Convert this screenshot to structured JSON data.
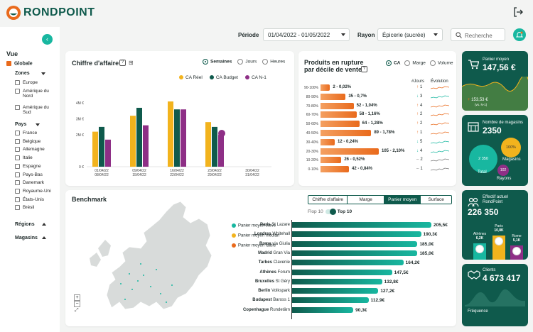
{
  "app": {
    "logo_text": "RONDPOINT",
    "colors": {
      "primary": "#0f5a4c",
      "accent": "#e96a1c",
      "teal": "#18b7a0",
      "yellow": "#f2b31d",
      "purple": "#8e2f86"
    }
  },
  "filters": {
    "period_label": "Période",
    "period_value": "01/04/2022 - 01/05/2022",
    "rayon_label": "Rayon",
    "rayon_value": "Épicerie (sucrée)",
    "search_placeholder": "Recherche"
  },
  "sidebar": {
    "vue": "Vue",
    "globale": "Globale",
    "zones": "Zones",
    "zone_items": [
      "Europe",
      "Amérique du Nord",
      "Amérique du Sud"
    ],
    "pays": "Pays",
    "pays_items": [
      "France",
      "Belgique",
      "Allemagne",
      "Italie",
      "Espagne",
      "Pays-Bas",
      "Danemark",
      "Royaume-Uni",
      "États-Unis",
      "Brésil"
    ],
    "regions": "Régions",
    "magasins": "Magasins"
  },
  "ca": {
    "title": "Chiffre d'affaire",
    "help": "?",
    "radios": [
      "Semaines",
      "Jours",
      "Heures"
    ],
    "legend": [
      "CA Réel",
      "CA Budget",
      "CA N-1"
    ],
    "yticks": [
      "4M €",
      "3M €",
      "2M €",
      "0 €"
    ],
    "xlabels": [
      [
        "01/04/22",
        "08/04/22"
      ],
      [
        "09/04/22",
        "15/04/22"
      ],
      [
        "16/04/22",
        "22/04/22"
      ],
      [
        "23/04/22",
        "29/04/22"
      ],
      [
        "30/04/22",
        "31/04/22"
      ]
    ]
  },
  "chart_data": {
    "type": "bar",
    "categories": [
      "01/04/22 08/04/22",
      "09/04/22 15/04/22",
      "16/04/22 22/04/22",
      "23/04/22 29/04/22",
      "30/04/22 31/04/22"
    ],
    "ylim": [
      0,
      4.5
    ],
    "series": [
      {
        "name": "CA Réel",
        "color": "#f2b31d",
        "values": [
          2.2,
          3.2,
          4.1,
          2.8,
          0
        ]
      },
      {
        "name": "CA Budget",
        "color": "#0f5a4c",
        "values": [
          2.5,
          3.7,
          3.6,
          2.5,
          0
        ]
      },
      {
        "name": "CA N-1",
        "color": "#8e2f86",
        "values": [
          1.7,
          2.6,
          3.6,
          2.0,
          0
        ]
      }
    ]
  },
  "rupture": {
    "title_line1": "Produits en rupture",
    "title_line2": "par décile de vente",
    "help": "?",
    "radios": [
      "CA",
      "Marge",
      "Volume"
    ],
    "col_jours": "#Jours",
    "col_evol": "Évolution",
    "rows": [
      {
        "decile": "90-100%",
        "label": "2 - 0,02%",
        "value": 2,
        "jours": "1",
        "trend": "up"
      },
      {
        "decile": "80-90%",
        "label": "35 - 0,7%",
        "value": 35,
        "jours": "3",
        "trend": "down"
      },
      {
        "decile": "70-80%",
        "label": "52 - 1,04%",
        "value": 52,
        "jours": "4",
        "trend": "up"
      },
      {
        "decile": "60-70%",
        "label": "58 - 1,16%",
        "value": 58,
        "jours": "2",
        "trend": "up"
      },
      {
        "decile": "50-60%",
        "label": "64 - 1,28%",
        "value": 64,
        "jours": "2",
        "trend": "up"
      },
      {
        "decile": "40-50%",
        "label": "89 - 1,78%",
        "value": 89,
        "jours": "1",
        "trend": "up"
      },
      {
        "decile": "30-40%",
        "label": "12 - 0,24%",
        "value": 12,
        "jours": "5",
        "trend": "down"
      },
      {
        "decile": "20-30%",
        "label": "105 - 2,10%",
        "value": 105,
        "jours": "4",
        "trend": "down"
      },
      {
        "decile": "10-20%",
        "label": "26 - 0,52%",
        "value": 26,
        "jours": "2",
        "trend": "flat"
      },
      {
        "decile": "0-10%",
        "label": "42 - 0,84%",
        "value": 42,
        "jours": "1",
        "trend": "flat"
      }
    ]
  },
  "kpis": {
    "panier": {
      "label": "Panier moyen",
      "value": "147,56 €",
      "delta": "153,53 €",
      "delta_sub": "(vs. N-1)"
    },
    "magasins": {
      "label": "Nombre de magasins",
      "value": "2350",
      "total_value": "2 350",
      "total_label": "Total",
      "mag_pct": "100%",
      "mag_label": "Magasins",
      "rayons_value": "102",
      "rayons_label": "Rayons"
    },
    "effectif": {
      "label": "Effectif actuel RondPoint",
      "value": "226 350",
      "cities": [
        {
          "name": "Athènes",
          "value": "6,2K",
          "color": "#18b7a0",
          "level": 0.62
        },
        {
          "name": "Paris",
          "value": "10,8K",
          "color": "#f2b31d",
          "level": 1.0
        },
        {
          "name": "Rome",
          "value": "5,1K",
          "color": "#8e2f86",
          "level": 0.5
        }
      ]
    },
    "clients": {
      "label": "Clients",
      "value": "4 673 417",
      "freq_label": "Fréquence"
    }
  },
  "benchmark": {
    "title": "Benchmark",
    "tabs": [
      "Chiffre d'affaire",
      "Marge",
      "Panier moyen",
      "Surface"
    ],
    "active_tab": 2,
    "toggle_left": "Flop 10",
    "toggle_right": "Top 10",
    "legend": [
      {
        "label": "Panier moyen élevé",
        "color": "#18b7a0"
      },
      {
        "label": "Panier moyen médian",
        "color": "#f2b31d"
      },
      {
        "label": "Panier moyen faible",
        "color": "#e96a1c"
      }
    ],
    "zoom_in": "+",
    "zoom_out": "−",
    "rows": [
      {
        "city": "Paris",
        "store": "St Lazare",
        "value": 205.5,
        "label": "205,5€"
      },
      {
        "city": "Londres",
        "store": "Whitehall",
        "value": 190.3,
        "label": "190,3€"
      },
      {
        "city": "Rome",
        "store": "via Giulia",
        "value": 185.0,
        "label": "185,0€"
      },
      {
        "city": "Madrid",
        "store": "Gran Via",
        "value": 185.0,
        "label": "185,0€"
      },
      {
        "city": "Tarbes",
        "store": "Clavenie",
        "value": 164.2,
        "label": "164,2€"
      },
      {
        "city": "Athènes",
        "store": "Forum",
        "value": 147.5,
        "label": "147,5€"
      },
      {
        "city": "Bruxelles",
        "store": "St Géry",
        "value": 132.8,
        "label": "132,8€"
      },
      {
        "city": "Berlin",
        "store": "Volkspark",
        "value": 127.2,
        "label": "127,2€"
      },
      {
        "city": "Budapest",
        "store": "Baross 1",
        "value": 112.9,
        "label": "112,9€"
      },
      {
        "city": "Copenhague",
        "store": "Rundetârn",
        "value": 90.3,
        "label": "90,3€"
      }
    ]
  }
}
